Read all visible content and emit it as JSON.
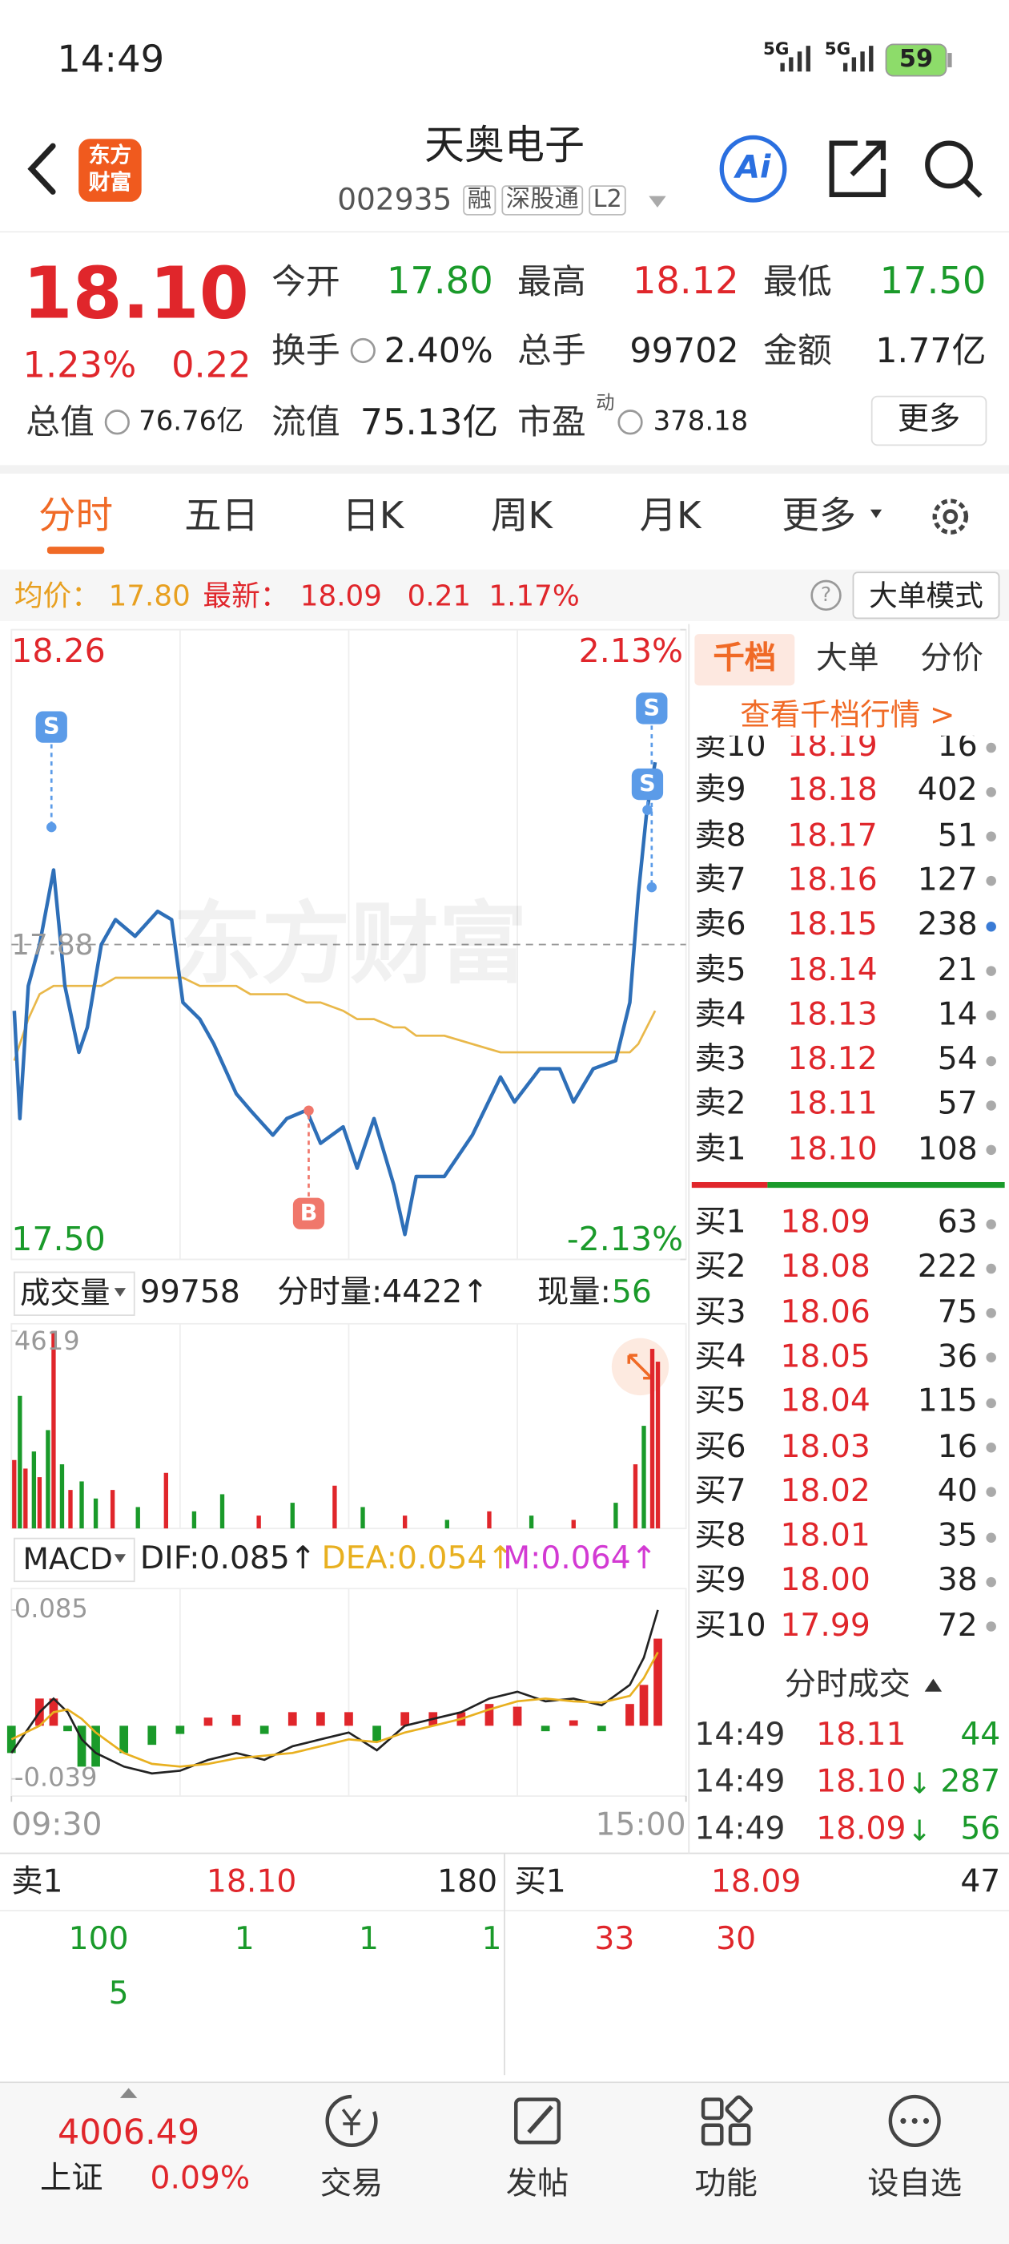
{
  "status_bar": {
    "time": "14:49",
    "network": [
      "5G",
      "5G"
    ],
    "battery": "59"
  },
  "header": {
    "logo": [
      "东方",
      "财富"
    ],
    "name": "天奥电子",
    "code": "002935",
    "tags": [
      "融",
      "深股通",
      "L2"
    ],
    "ai": "Ai"
  },
  "quote": {
    "price": "18.10",
    "change_percent": "1.23%",
    "change": "0.22",
    "more": "更多",
    "fields": [
      {
        "label": "今开",
        "value": "17.80",
        "color": "#1a9a2a"
      },
      {
        "label": "最高",
        "value": "18.12",
        "color": "#e0262b"
      },
      {
        "label": "最低",
        "value": "17.50",
        "color": "#1a9a2a"
      },
      {
        "label": "换手",
        "value": "2.40%"
      },
      {
        "label": "总手",
        "value": "99702"
      },
      {
        "label": "金额",
        "value": "1.77亿"
      },
      {
        "label": "总值",
        "value": "76.76亿"
      },
      {
        "label": "流值",
        "value": "75.13亿"
      },
      {
        "label": "市盈",
        "sup": "动",
        "value": "378.18"
      }
    ]
  },
  "tabs": {
    "items": [
      "分时",
      "五日",
      "日K",
      "周K",
      "月K",
      "更多"
    ],
    "active": 0
  },
  "info_bar": {
    "avg_label": "均价：",
    "avg": "17.80",
    "latest_label": "最新：",
    "latest": "18.09",
    "change": "0.21",
    "change_percent": "1.17%",
    "help": "?",
    "mode": "大单模式"
  },
  "chart_data": [
    {
      "type": "line",
      "xlim": [
        0,
        240
      ],
      "ylim": [
        17.5,
        18.26
      ],
      "yticks": [
        {
          "value": 17.5,
          "label": "17.50"
        },
        17.88,
        18.26
      ],
      "y2lim": [
        -2.13,
        2.13
      ],
      "y2ticks": [
        {
          "value": -2.13,
          "label": "-2.13%"
        },
        {
          "value": 2.13,
          "label": "2.13%"
        }
      ],
      "x": [
        1,
        3,
        6,
        10,
        15,
        19,
        24,
        27,
        32,
        37,
        44,
        52,
        57,
        61,
        67,
        72,
        80,
        85,
        93,
        98,
        105,
        110,
        118,
        123,
        129,
        136,
        140,
        144,
        154,
        164,
        174,
        179,
        188,
        195,
        200,
        207,
        215,
        220,
        223,
        226,
        229
      ],
      "series": [
        {
          "color": "#2e6fb8",
          "values": [
            17.8,
            17.67,
            17.83,
            17.88,
            17.97,
            17.83,
            17.75,
            17.78,
            17.88,
            17.91,
            17.89,
            17.92,
            17.91,
            17.81,
            17.79,
            17.76,
            17.7,
            17.68,
            17.65,
            17.67,
            17.68,
            17.64,
            17.66,
            17.61,
            17.67,
            17.59,
            17.53,
            17.6,
            17.6,
            17.65,
            17.72,
            17.69,
            17.73,
            17.73,
            17.69,
            17.73,
            17.74,
            17.81,
            17.94,
            18.04,
            18.1
          ]
        },
        {
          "color": "#e9b84a",
          "values": [
            17.74,
            17.76,
            17.79,
            17.82,
            17.83,
            17.83,
            17.83,
            17.83,
            17.83,
            17.84,
            17.84,
            17.84,
            17.84,
            17.84,
            17.83,
            17.83,
            17.83,
            17.82,
            17.82,
            17.82,
            17.81,
            17.81,
            17.8,
            17.79,
            17.79,
            17.78,
            17.78,
            17.77,
            17.77,
            17.76,
            17.75,
            17.75,
            17.75,
            17.75,
            17.75,
            17.75,
            17.75,
            17.75,
            17.76,
            17.78,
            17.8
          ]
        }
      ],
      "annotations": [
        "S",
        "S",
        "S",
        "B"
      ],
      "watermark": "东方财富"
    },
    {
      "type": "bar",
      "title": "成交量",
      "total": "99758",
      "period_volume": "分时量:4422↑",
      "current_label": "现量:",
      "current": "56",
      "xlim": [
        0,
        240
      ],
      "ylim": [
        0,
        4619
      ],
      "yticks": [
        4619
      ],
      "x": [
        1,
        3,
        5,
        8,
        10,
        13,
        15,
        18,
        21,
        25,
        30,
        36,
        45,
        55,
        65,
        75,
        88,
        100,
        115,
        125,
        140,
        155,
        170,
        185,
        200,
        215,
        222,
        225,
        228,
        230
      ],
      "values": [
        1600,
        3100,
        1400,
        1800,
        1200,
        2300,
        4619,
        1500,
        900,
        1100,
        700,
        900,
        500,
        1300,
        400,
        800,
        300,
        600,
        1000,
        500,
        300,
        200,
        400,
        300,
        200,
        600,
        1500,
        2400,
        4200,
        3900
      ],
      "colors": [
        "#e0262b",
        "#1a9a2a",
        "#e0262b",
        "#1a9a2a",
        "#e0262b",
        "#1a9a2a",
        "#e0262b",
        "#1a9a2a",
        "#e0262b",
        "#1a9a2a",
        "#1a9a2a",
        "#e0262b",
        "#1a9a2a",
        "#e0262b",
        "#1a9a2a",
        "#1a9a2a",
        "#e0262b",
        "#1a9a2a",
        "#e0262b",
        "#1a9a2a",
        "#e0262b",
        "#1a9a2a",
        "#e0262b",
        "#1a9a2a",
        "#e0262b",
        "#1a9a2a",
        "#e0262b",
        "#1a9a2a",
        "#e0262b",
        "#e0262b"
      ]
    },
    {
      "type": "macd",
      "title": "MACD",
      "legend": [
        "DIF:0.085↑",
        "DEA:0.054↑",
        "M:0.064↑"
      ],
      "xlim": [
        0,
        240
      ],
      "xticks": [
        {
          "value": 0,
          "label": "09:30"
        },
        {
          "value": 240,
          "label": "15:00"
        }
      ],
      "ylim": [
        -0.039,
        0.085
      ],
      "yticks": [
        -0.039,
        0.085
      ],
      "x": [
        0,
        10,
        15,
        20,
        25,
        30,
        40,
        50,
        60,
        70,
        80,
        90,
        100,
        110,
        120,
        130,
        140,
        150,
        160,
        170,
        180,
        190,
        200,
        210,
        220,
        225,
        230
      ],
      "series": [
        {
          "color": "#222222",
          "values": [
            -0.02,
            0.01,
            0.02,
            0.01,
            -0.01,
            -0.02,
            -0.03,
            -0.035,
            -0.033,
            -0.025,
            -0.02,
            -0.025,
            -0.015,
            -0.01,
            -0.005,
            -0.018,
            0.0,
            0.005,
            0.01,
            0.02,
            0.025,
            0.018,
            0.02,
            0.015,
            0.03,
            0.05,
            0.085
          ]
        },
        {
          "color": "#e8b020",
          "values": [
            -0.01,
            0.0,
            0.01,
            0.012,
            0.005,
            -0.005,
            -0.02,
            -0.028,
            -0.03,
            -0.028,
            -0.024,
            -0.022,
            -0.02,
            -0.015,
            -0.01,
            -0.012,
            -0.005,
            0.0,
            0.005,
            0.012,
            0.018,
            0.02,
            0.018,
            0.017,
            0.022,
            0.035,
            0.054
          ]
        },
        {
          "color": "#d33ad3",
          "up_color": "#e0262b",
          "down_color": "#1a9a2a",
          "values": [
            -0.02,
            0.02,
            0.02,
            -0.004,
            -0.03,
            -0.03,
            -0.02,
            -0.014,
            -0.006,
            0.006,
            0.008,
            -0.006,
            0.01,
            0.01,
            0.01,
            -0.012,
            0.01,
            0.01,
            0.01,
            0.016,
            0.014,
            -0.004,
            0.004,
            -0.004,
            0.016,
            0.03,
            0.064
          ]
        }
      ]
    }
  ],
  "order_book": {
    "tabs": [
      "千档",
      "大单",
      "分价"
    ],
    "link": "查看千档行情 >",
    "asks": [
      {
        "label": "卖10",
        "price": "18.19",
        "volume": "16"
      },
      {
        "label": "卖9",
        "price": "18.18",
        "volume": "402"
      },
      {
        "label": "卖8",
        "price": "18.17",
        "volume": "51"
      },
      {
        "label": "卖7",
        "price": "18.16",
        "volume": "127"
      },
      {
        "label": "卖6",
        "price": "18.15",
        "volume": "238",
        "dot": "#3a7bd5"
      },
      {
        "label": "卖5",
        "price": "18.14",
        "volume": "21"
      },
      {
        "label": "卖4",
        "price": "18.13",
        "volume": "14"
      },
      {
        "label": "卖3",
        "price": "18.12",
        "volume": "54"
      },
      {
        "label": "卖2",
        "price": "18.11",
        "volume": "57"
      },
      {
        "label": "卖1",
        "price": "18.10",
        "volume": "108"
      }
    ],
    "bids": [
      {
        "label": "买1",
        "price": "18.09",
        "volume": "63"
      },
      {
        "label": "买2",
        "price": "18.08",
        "volume": "222"
      },
      {
        "label": "买3",
        "price": "18.06",
        "volume": "75"
      },
      {
        "label": "买4",
        "price": "18.05",
        "volume": "36"
      },
      {
        "label": "买5",
        "price": "18.04",
        "volume": "115"
      },
      {
        "label": "买6",
        "price": "18.03",
        "volume": "16"
      },
      {
        "label": "买7",
        "price": "18.02",
        "volume": "40"
      },
      {
        "label": "买8",
        "price": "18.01",
        "volume": "35"
      },
      {
        "label": "买9",
        "price": "18.00",
        "volume": "38"
      },
      {
        "label": "买10",
        "price": "17.99",
        "volume": "72"
      }
    ],
    "trades_title": "分时成交",
    "trades": [
      {
        "time": "14:49",
        "price": "18.11",
        "arrow": "",
        "volume": "44"
      },
      {
        "time": "14:49",
        "price": "18.10",
        "arrow": "↓",
        "volume": "287"
      },
      {
        "time": "14:49",
        "price": "18.09",
        "arrow": "↓",
        "volume": "56"
      }
    ]
  },
  "bottom_panel": {
    "left": {
      "label": "卖1",
      "price": "18.10",
      "volume": "180",
      "orders": [
        "100",
        "1",
        "1",
        "1",
        "5"
      ]
    },
    "right": {
      "label": "买1",
      "price": "18.09",
      "volume": "47",
      "orders": [
        "33",
        "30"
      ]
    }
  },
  "footer": {
    "index_value": "4006.49",
    "index_name": "上证",
    "index_change": "0.09%",
    "tabs": [
      "交易",
      "发帖",
      "功能",
      "设自选"
    ]
  }
}
